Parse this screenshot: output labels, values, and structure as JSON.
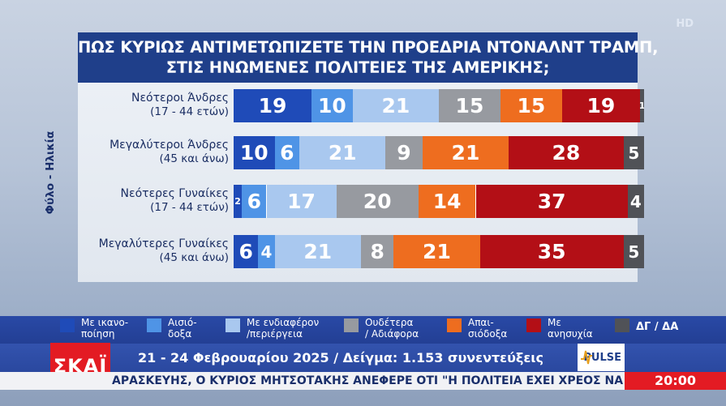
{
  "title": {
    "line1": "ΠΩΣ ΚΥΡΙΩΣ ΑΝΤΙΜΕΤΩΠΙΖΕΤΕ ΤΗΝ ΠΡΟΕΔΡΙΑ ΝΤΟΝΑΛΝΤ ΤΡΑΜΠ,",
    "line2": "ΣΤΙΣ ΗΝΩΜΕΝΕΣ ΠΟΛΙΤΕΙΕΣ ΤΗΣ ΑΜΕΡΙΚΗΣ;"
  },
  "corner_badge": "HD",
  "chart_data": {
    "type": "bar",
    "stacked": true,
    "orientation": "horizontal",
    "ylabel": "Φύλο - Ηλικία",
    "categories": [
      {
        "name": "Νεότεροι Άνδρες",
        "sub": "(17 - 44 ετών)"
      },
      {
        "name": "Μεγαλύτεροι Άνδρες",
        "sub": "(45 και άνω)"
      },
      {
        "name": "Νεότερες Γυναίκες",
        "sub": "(17 - 44 ετών)"
      },
      {
        "name": "Μεγαλύτερες Γυναίκες",
        "sub": "(45 και άνω)"
      }
    ],
    "series": [
      {
        "name": "Με ικανοποίηση",
        "color": "#1f4bb8",
        "values": [
          19,
          10,
          2,
          6
        ]
      },
      {
        "name": "Αισιόδοξα",
        "color": "#4f94e6",
        "values": [
          10,
          6,
          6,
          4
        ]
      },
      {
        "name": "Με ενδιαφέρον /περιέργεια",
        "color": "#a9c8ef",
        "values": [
          21,
          21,
          17,
          21
        ]
      },
      {
        "name": "Ουδέτερα / Αδιάφορα",
        "color": "#979aa0",
        "values": [
          15,
          9,
          20,
          8
        ]
      },
      {
        "name": "Απαισιόδοξα",
        "color": "#ee6d1f",
        "values": [
          15,
          21,
          14,
          21
        ]
      },
      {
        "name": "Με ανησυχία",
        "color": "#b30f16",
        "values": [
          19,
          28,
          37,
          35
        ]
      },
      {
        "name": "ΔΓ / ΔΑ",
        "color": "#505257",
        "values": [
          1,
          5,
          4,
          5
        ]
      }
    ]
  },
  "legend": [
    {
      "l1": "Με ικανο-",
      "l2": "ποίηση",
      "color": "#1f4bb8"
    },
    {
      "l1": "Αισιό-",
      "l2": "δοξα",
      "color": "#4f94e6"
    },
    {
      "l1": "Με ενδιαφέρον",
      "l2": "/περιέργεια",
      "color": "#a9c8ef"
    },
    {
      "l1": "Ουδέτερα",
      "l2": "/ Αδιάφορα",
      "color": "#979aa0"
    },
    {
      "l1": "Απαι-",
      "l2": "σιόδοξα",
      "color": "#ee6d1f"
    },
    {
      "l1": "Με",
      "l2": "ανησυχία",
      "color": "#b30f16"
    },
    {
      "l1": "ΔΓ / ΔΑ",
      "l2": "",
      "color": "#505257"
    }
  ],
  "footer": {
    "logo": "ΣΚΑΪ",
    "info": "21 - 24 Φεβρουαρίου 2025 / Δείγμα: 1.153 συνεντεύξεις",
    "pulse": "PULSE",
    "ticker": "ΑΡΑΣΚΕΥΗΣ, Ο ΚΥΡΙΟΣ ΜΗΤΣΟΤΑΚΗΣ ΑΝΕΦΕΡΕ ΟΤΙ \"Η ΠΟΛΙΤΕΙΑ ΕΧΕΙ ΧΡΕΟΣ ΝΑ ΜΕΡΙΜΝΗΣΕΙ",
    "time": "20:00"
  }
}
